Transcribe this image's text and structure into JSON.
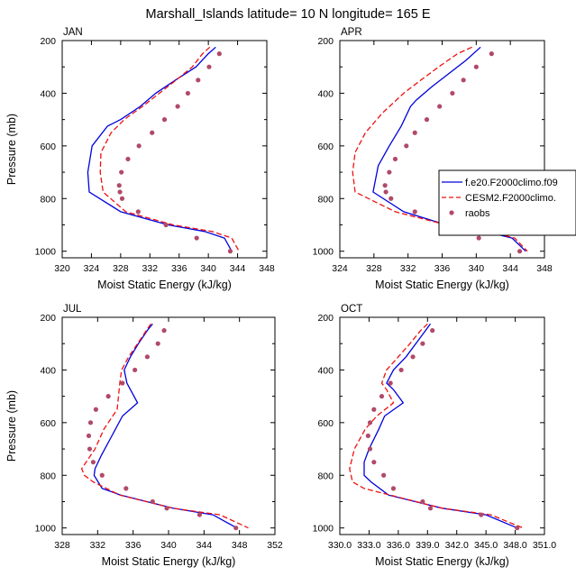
{
  "title": "Marshall_Islands  latitude= 10 N longitude= 165 E",
  "colors": {
    "f_e20": "#0000dd",
    "cesm2": "#ee1111",
    "raobs": "#b04a68",
    "axis": "#000000"
  },
  "legend": {
    "placement": "inside APR panel, right",
    "entries": [
      {
        "key": "f_e20",
        "label": "f.e20.F2000climo.f09",
        "style": "solid"
      },
      {
        "key": "cesm2",
        "label": "CESM2.F2000climo.",
        "style": "dashed"
      },
      {
        "key": "raobs",
        "label": "raobs",
        "style": "marker"
      }
    ]
  },
  "chart_data": [
    {
      "type": "line",
      "panel": "JAN",
      "xlabel": "Moist Static Energy (kJ/kg)",
      "ylabel": "Pressure (mb)",
      "xlim": [
        320,
        348
      ],
      "ylim": [
        1025,
        200
      ],
      "xticks": [
        "320",
        "324",
        "328",
        "332",
        "336",
        "340",
        "344",
        "348"
      ],
      "yticks": [
        "200",
        "400",
        "600",
        "800",
        "1000"
      ],
      "series": [
        {
          "key": "f_e20",
          "x": [
            341.0,
            340.0,
            338.3,
            335.5,
            332.8,
            330.7,
            328.0,
            326.2,
            324.1,
            323.5,
            323.7,
            328.0,
            334.5,
            339.5,
            342.2,
            343.2
          ],
          "y": [
            225,
            250,
            300,
            350,
            400,
            450,
            500,
            525,
            600,
            700,
            775,
            850,
            900,
            925,
            950,
            1000
          ]
        },
        {
          "key": "cesm2",
          "x": [
            340.2,
            339.2,
            337.8,
            335.6,
            333.3,
            331.0,
            328.5,
            326.7,
            325.3,
            325.2,
            325.6,
            328.7,
            335.2,
            340.5,
            343.2,
            344.2
          ],
          "y": [
            225,
            250,
            300,
            350,
            400,
            450,
            500,
            550,
            625,
            700,
            775,
            850,
            900,
            925,
            950,
            1000
          ]
        },
        {
          "key": "raobs",
          "x": [
            341.5,
            340.1,
            338.6,
            337.2,
            335.8,
            334.0,
            332.3,
            330.5,
            329.0,
            328.1,
            327.8,
            327.9,
            328.2,
            330.4,
            334.2,
            338.4,
            343.0
          ],
          "y": [
            250,
            300,
            350,
            400,
            450,
            500,
            550,
            600,
            650,
            700,
            750,
            775,
            800,
            850,
            900,
            950,
            1000
          ]
        }
      ]
    },
    {
      "type": "line",
      "panel": "APR",
      "xlabel": "Moist Static Energy (kJ/kg)",
      "ylabel": "",
      "xlim": [
        324,
        348
      ],
      "ylim": [
        1025,
        200
      ],
      "xticks": [
        "324",
        "328",
        "332",
        "336",
        "340",
        "344",
        "348"
      ],
      "yticks": [
        "200",
        "400",
        "600",
        "800",
        "1000"
      ],
      "series": [
        {
          "key": "f_e20",
          "x": [
            340.5,
            338.8,
            336.8,
            334.8,
            333.0,
            332.3,
            331.2,
            329.8,
            328.5,
            327.9,
            331.5,
            336.5,
            341.0,
            344.2,
            345.8
          ],
          "y": [
            225,
            275,
            325,
            375,
            425,
            450,
            525,
            600,
            675,
            775,
            850,
            900,
            925,
            950,
            1000
          ]
        },
        {
          "key": "cesm2",
          "x": [
            339.5,
            337.8,
            335.6,
            333.5,
            331.5,
            329.0,
            327.0,
            325.8,
            325.5,
            325.8,
            330.5,
            336.5,
            341.5,
            344.5,
            346.0
          ],
          "y": [
            225,
            250,
            300,
            350,
            400,
            475,
            550,
            625,
            700,
            775,
            850,
            900,
            925,
            950,
            1000
          ]
        },
        {
          "key": "raobs",
          "x": [
            341.8,
            340.0,
            338.5,
            337.2,
            335.7,
            334.2,
            332.8,
            331.8,
            330.5,
            329.8,
            329.3,
            329.4,
            330.0,
            332.8,
            336.2,
            340.3,
            345.1
          ],
          "y": [
            250,
            300,
            350,
            400,
            450,
            500,
            550,
            600,
            650,
            700,
            750,
            775,
            800,
            850,
            900,
            950,
            1000
          ]
        }
      ]
    },
    {
      "type": "line",
      "panel": "JUL",
      "xlabel": "Moist Static Energy (kJ/kg)",
      "ylabel": "Pressure (mb)",
      "xlim": [
        328,
        352
      ],
      "ylim": [
        1025,
        200
      ],
      "xticks": [
        "328",
        "332",
        "336",
        "340",
        "344",
        "348",
        "352"
      ],
      "yticks": [
        "200",
        "400",
        "600",
        "800",
        "1000"
      ],
      "series": [
        {
          "key": "f_e20",
          "x": [
            338.2,
            337.6,
            336.6,
            335.7,
            335.0,
            335.3,
            336.5,
            334.8,
            333.6,
            332.4,
            331.7,
            331.6,
            332.5,
            334.6,
            340.5,
            345.0,
            347.7
          ],
          "y": [
            225,
            250,
            300,
            350,
            400,
            450,
            525,
            575,
            650,
            725,
            775,
            800,
            850,
            875,
            925,
            950,
            1000
          ]
        },
        {
          "key": "cesm2",
          "x": [
            338.0,
            337.5,
            336.5,
            335.5,
            334.7,
            334.5,
            334.2,
            332.7,
            331.7,
            330.7,
            330.2,
            330.5,
            331.5,
            334.5,
            340.5,
            345.8,
            349.0
          ],
          "y": [
            225,
            250,
            300,
            350,
            400,
            450,
            550,
            625,
            700,
            750,
            775,
            800,
            825,
            875,
            925,
            950,
            1000
          ]
        },
        {
          "key": "raobs",
          "x": [
            339.5,
            338.8,
            337.6,
            336.2,
            334.8,
            333.2,
            331.8,
            331.2,
            331.0,
            331.1,
            331.5,
            332.5,
            335.2,
            338.2,
            339.8,
            343.5,
            347.6
          ],
          "y": [
            250,
            300,
            350,
            400,
            450,
            500,
            550,
            600,
            650,
            700,
            750,
            800,
            850,
            900,
            925,
            950,
            1000
          ]
        }
      ]
    },
    {
      "type": "line",
      "panel": "OCT",
      "xlabel": "Moist Static Energy (kJ/kg)",
      "ylabel": "",
      "xlim": [
        330,
        351
      ],
      "ylim": [
        1025,
        200
      ],
      "xticks": [
        "330.0",
        "333.0",
        "336.0",
        "339.0",
        "342.0",
        "345.0",
        "348.0",
        "351.0"
      ],
      "yticks": [
        "200",
        "400",
        "600",
        "800",
        "1000"
      ],
      "series": [
        {
          "key": "f_e20",
          "x": [
            339.3,
            338.8,
            337.8,
            336.8,
            335.5,
            334.8,
            335.5,
            336.5,
            334.6,
            334.0,
            333.0,
            332.5,
            332.5,
            333.2,
            335.0,
            340.5,
            345.0,
            348.2
          ],
          "y": [
            225,
            250,
            300,
            350,
            400,
            450,
            475,
            525,
            575,
            625,
            700,
            750,
            800,
            825,
            875,
            925,
            950,
            1000
          ]
        },
        {
          "key": "cesm2",
          "x": [
            339.0,
            338.3,
            337.2,
            336.0,
            334.8,
            334.3,
            334.8,
            335.5,
            333.8,
            332.6,
            331.5,
            331.0,
            331.3,
            332.5,
            340.5,
            345.5,
            348.8
          ],
          "y": [
            225,
            250,
            300,
            350,
            400,
            450,
            475,
            525,
            575,
            625,
            700,
            775,
            825,
            850,
            925,
            950,
            1000
          ]
        },
        {
          "key": "raobs",
          "x": [
            339.5,
            338.5,
            337.5,
            336.3,
            335.2,
            334.3,
            333.5,
            333.1,
            332.9,
            333.1,
            333.5,
            334.5,
            335.5,
            338.5,
            339.3,
            344.5,
            348.2
          ],
          "y": [
            250,
            300,
            350,
            400,
            450,
            500,
            550,
            600,
            650,
            700,
            750,
            800,
            850,
            900,
            925,
            950,
            1000
          ]
        }
      ]
    }
  ]
}
